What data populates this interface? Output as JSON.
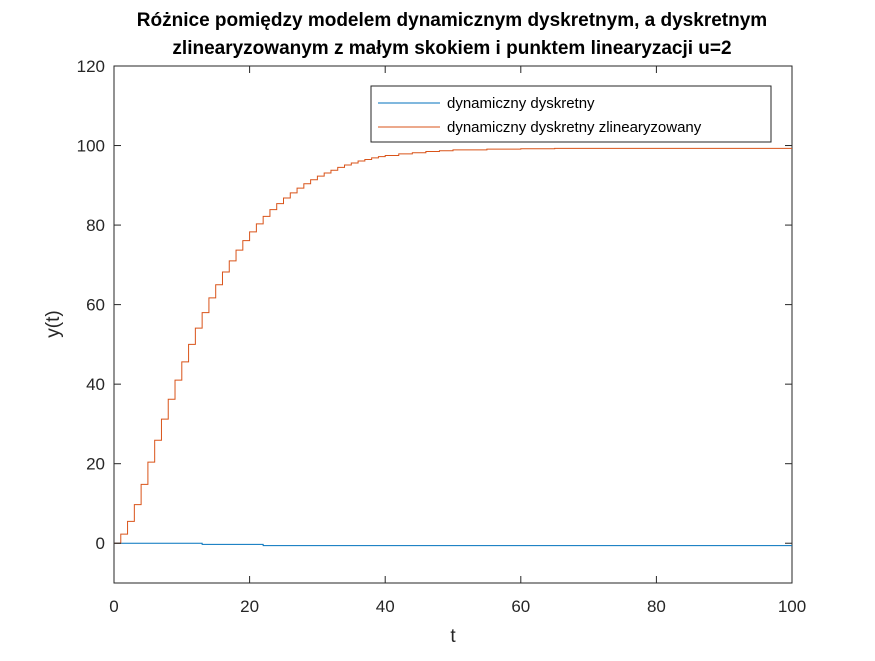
{
  "chart_data": {
    "type": "line",
    "title_lines": [
      "Różnice pomiędzy modelem dynamicznym dyskretnym, a dyskretnym",
      "zlinearyzowanym z małym skokiem i punktem linearyzacji u=2"
    ],
    "xlabel": "t",
    "ylabel": "y(t)",
    "xlim": [
      0,
      100
    ],
    "ylim": [
      -10,
      120
    ],
    "x_ticks": [
      0,
      20,
      40,
      60,
      80,
      100
    ],
    "y_ticks": [
      0,
      20,
      40,
      60,
      80,
      100,
      120
    ],
    "grid": false,
    "legend_position": "top-right",
    "step_plot": true,
    "series": [
      {
        "name": "dynamiczny dyskretny",
        "color": "#0072bd",
        "x": [
          0,
          13,
          22,
          100
        ],
        "y": [
          0,
          -0.3,
          -0.6,
          -0.6
        ]
      },
      {
        "name": "dynamiczny dyskretny zlinearyzowany",
        "color": "#d95319",
        "x": [
          0,
          1,
          2,
          3,
          4,
          5,
          6,
          7,
          8,
          9,
          10,
          11,
          12,
          13,
          14,
          15,
          16,
          17,
          18,
          19,
          20,
          21,
          22,
          23,
          24,
          25,
          26,
          27,
          28,
          29,
          30,
          31,
          32,
          33,
          34,
          35,
          36,
          37,
          38,
          39,
          40,
          42,
          44,
          46,
          48,
          50,
          55,
          60,
          65,
          70,
          80,
          90,
          100
        ],
        "y": [
          0,
          2.3,
          5.5,
          9.7,
          14.8,
          20.4,
          25.9,
          31.2,
          36.2,
          41.0,
          45.6,
          50.0,
          54.1,
          58.0,
          61.7,
          65.0,
          68.2,
          71.0,
          73.7,
          76.1,
          78.3,
          80.3,
          82.2,
          83.9,
          85.4,
          86.8,
          88.1,
          89.3,
          90.4,
          91.4,
          92.3,
          93.1,
          93.8,
          94.5,
          95.1,
          95.6,
          96.1,
          96.5,
          96.9,
          97.2,
          97.5,
          97.9,
          98.2,
          98.5,
          98.7,
          98.9,
          99.1,
          99.2,
          99.3,
          99.3,
          99.3,
          99.3,
          99.3
        ]
      }
    ]
  }
}
